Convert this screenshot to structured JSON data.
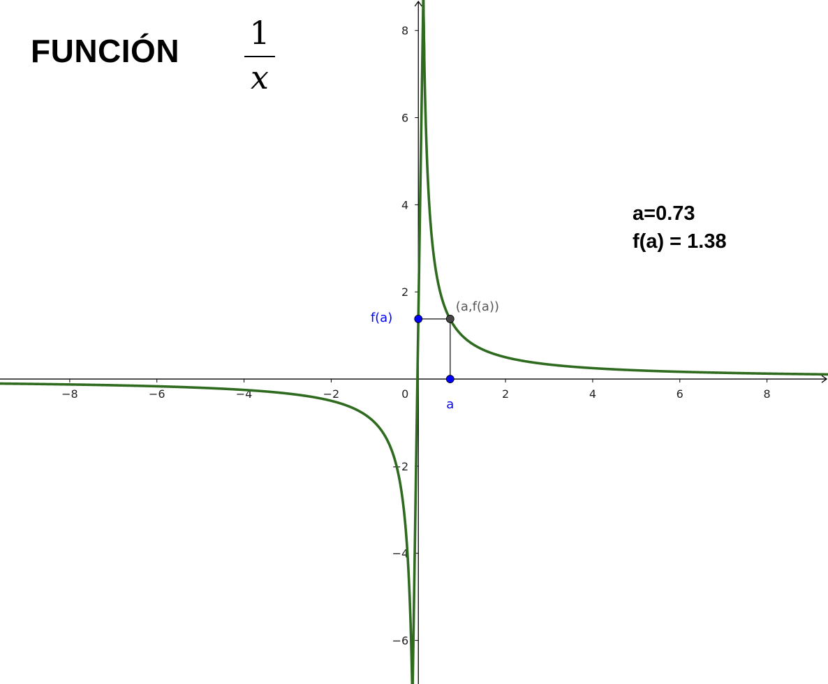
{
  "title": {
    "word": "FUNCIÓN",
    "numerator": "1",
    "denominator": "x"
  },
  "info": {
    "a_text": "a=0.73",
    "fa_text": "f(a) = 1.38"
  },
  "chart_data": {
    "type": "line",
    "function": "1/x",
    "xlim": [
      -9.6,
      9.4
    ],
    "ylim": [
      -7.0,
      8.7
    ],
    "x_ticks": [
      -8,
      -6,
      -4,
      -2,
      0,
      2,
      4,
      6,
      8
    ],
    "y_ticks": [
      -6,
      -4,
      -2,
      2,
      4,
      6,
      8
    ],
    "x_tick_labels": [
      "−8",
      "−6",
      "−4",
      "−2",
      "0",
      "2",
      "4",
      "6",
      "8"
    ],
    "y_tick_labels": [
      "−6",
      "−4",
      "−2",
      "2",
      "4",
      "6",
      "8"
    ],
    "grid": false,
    "series": [
      {
        "color": "#2e6b1f"
      }
    ],
    "a": 0.73,
    "fa": 1.38,
    "points": {
      "point_on_curve": {
        "label": "(a,f(a))",
        "x": 0.73,
        "y": 1.38,
        "color": "#444444"
      },
      "point_a": {
        "label": "a",
        "x": 0.73,
        "y": 0,
        "color": "#0000ff"
      },
      "point_fa": {
        "label": "f(a)",
        "x": 0,
        "y": 1.38,
        "color": "#0000ff"
      }
    }
  }
}
